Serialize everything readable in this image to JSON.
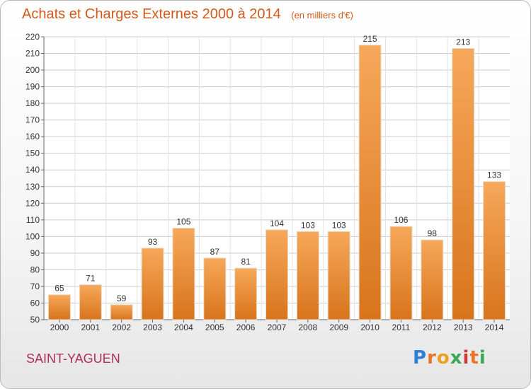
{
  "header": {
    "title": "Achats et Charges Externes 2000 à 2014",
    "unit": "(en milliers d'€)"
  },
  "footer": {
    "commune": "SAINT-YAGUEN",
    "logo_letters": [
      "P",
      "r",
      "o",
      "x",
      "i",
      "t",
      "i"
    ]
  },
  "colors": {
    "title": "#d25a1a",
    "commune": "#b1305a",
    "bar_light": "#f6a85a",
    "bar_dark": "#d8741c",
    "grid": "#cccccc"
  },
  "chart_data": {
    "type": "bar",
    "title": "Achats et Charges Externes 2000 à 2014",
    "subtitle": "(en milliers d'€)",
    "categories": [
      "2000",
      "2001",
      "2002",
      "2003",
      "2004",
      "2005",
      "2006",
      "2007",
      "2008",
      "2009",
      "2010",
      "2011",
      "2012",
      "2013",
      "2014"
    ],
    "values": [
      65,
      71,
      59,
      93,
      105,
      87,
      81,
      104,
      103,
      103,
      215,
      106,
      98,
      213,
      133
    ],
    "ylim": [
      50,
      220
    ],
    "yticks": [
      50,
      60,
      70,
      80,
      90,
      100,
      110,
      120,
      130,
      140,
      150,
      160,
      170,
      180,
      190,
      200,
      210,
      220
    ],
    "grid": true,
    "xlabel": "",
    "ylabel": ""
  }
}
